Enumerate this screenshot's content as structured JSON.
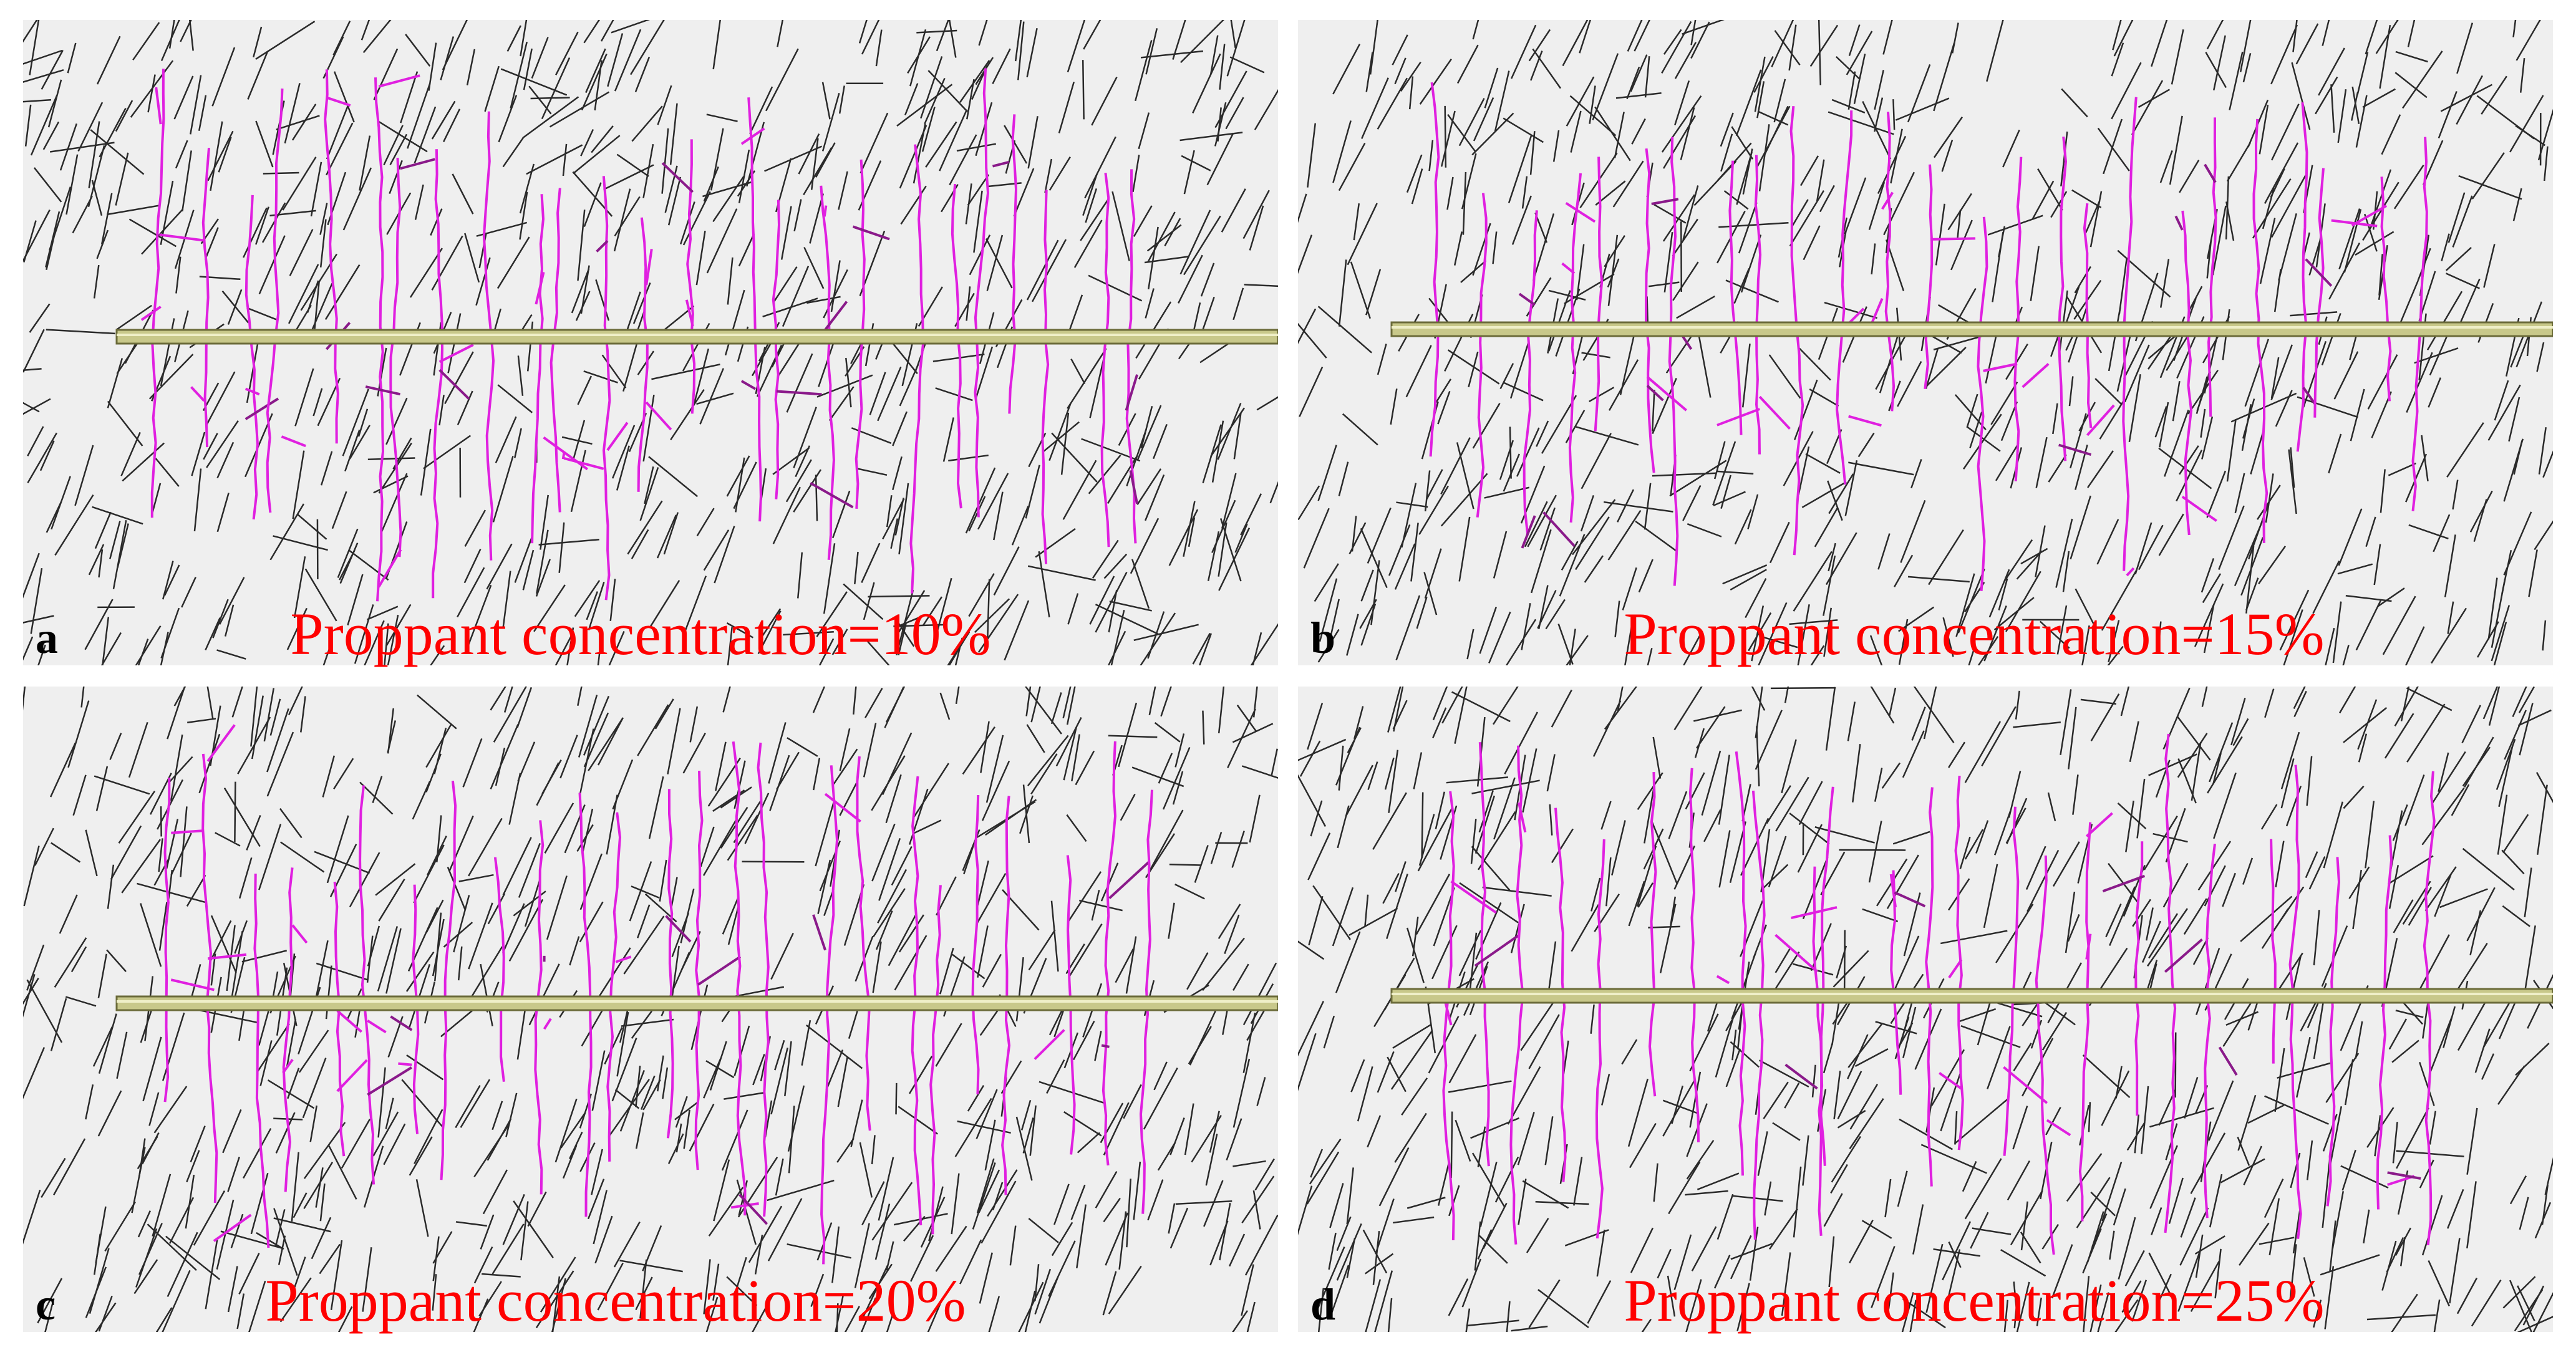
{
  "panels": [
    {
      "label": "a",
      "caption": "Proppant concentration=10%"
    },
    {
      "label": "b",
      "caption": "Proppant concentration=15%"
    },
    {
      "label": "c",
      "caption": "Proppant concentration=20%"
    },
    {
      "label": "d",
      "caption": "Proppant concentration=25%"
    }
  ]
}
